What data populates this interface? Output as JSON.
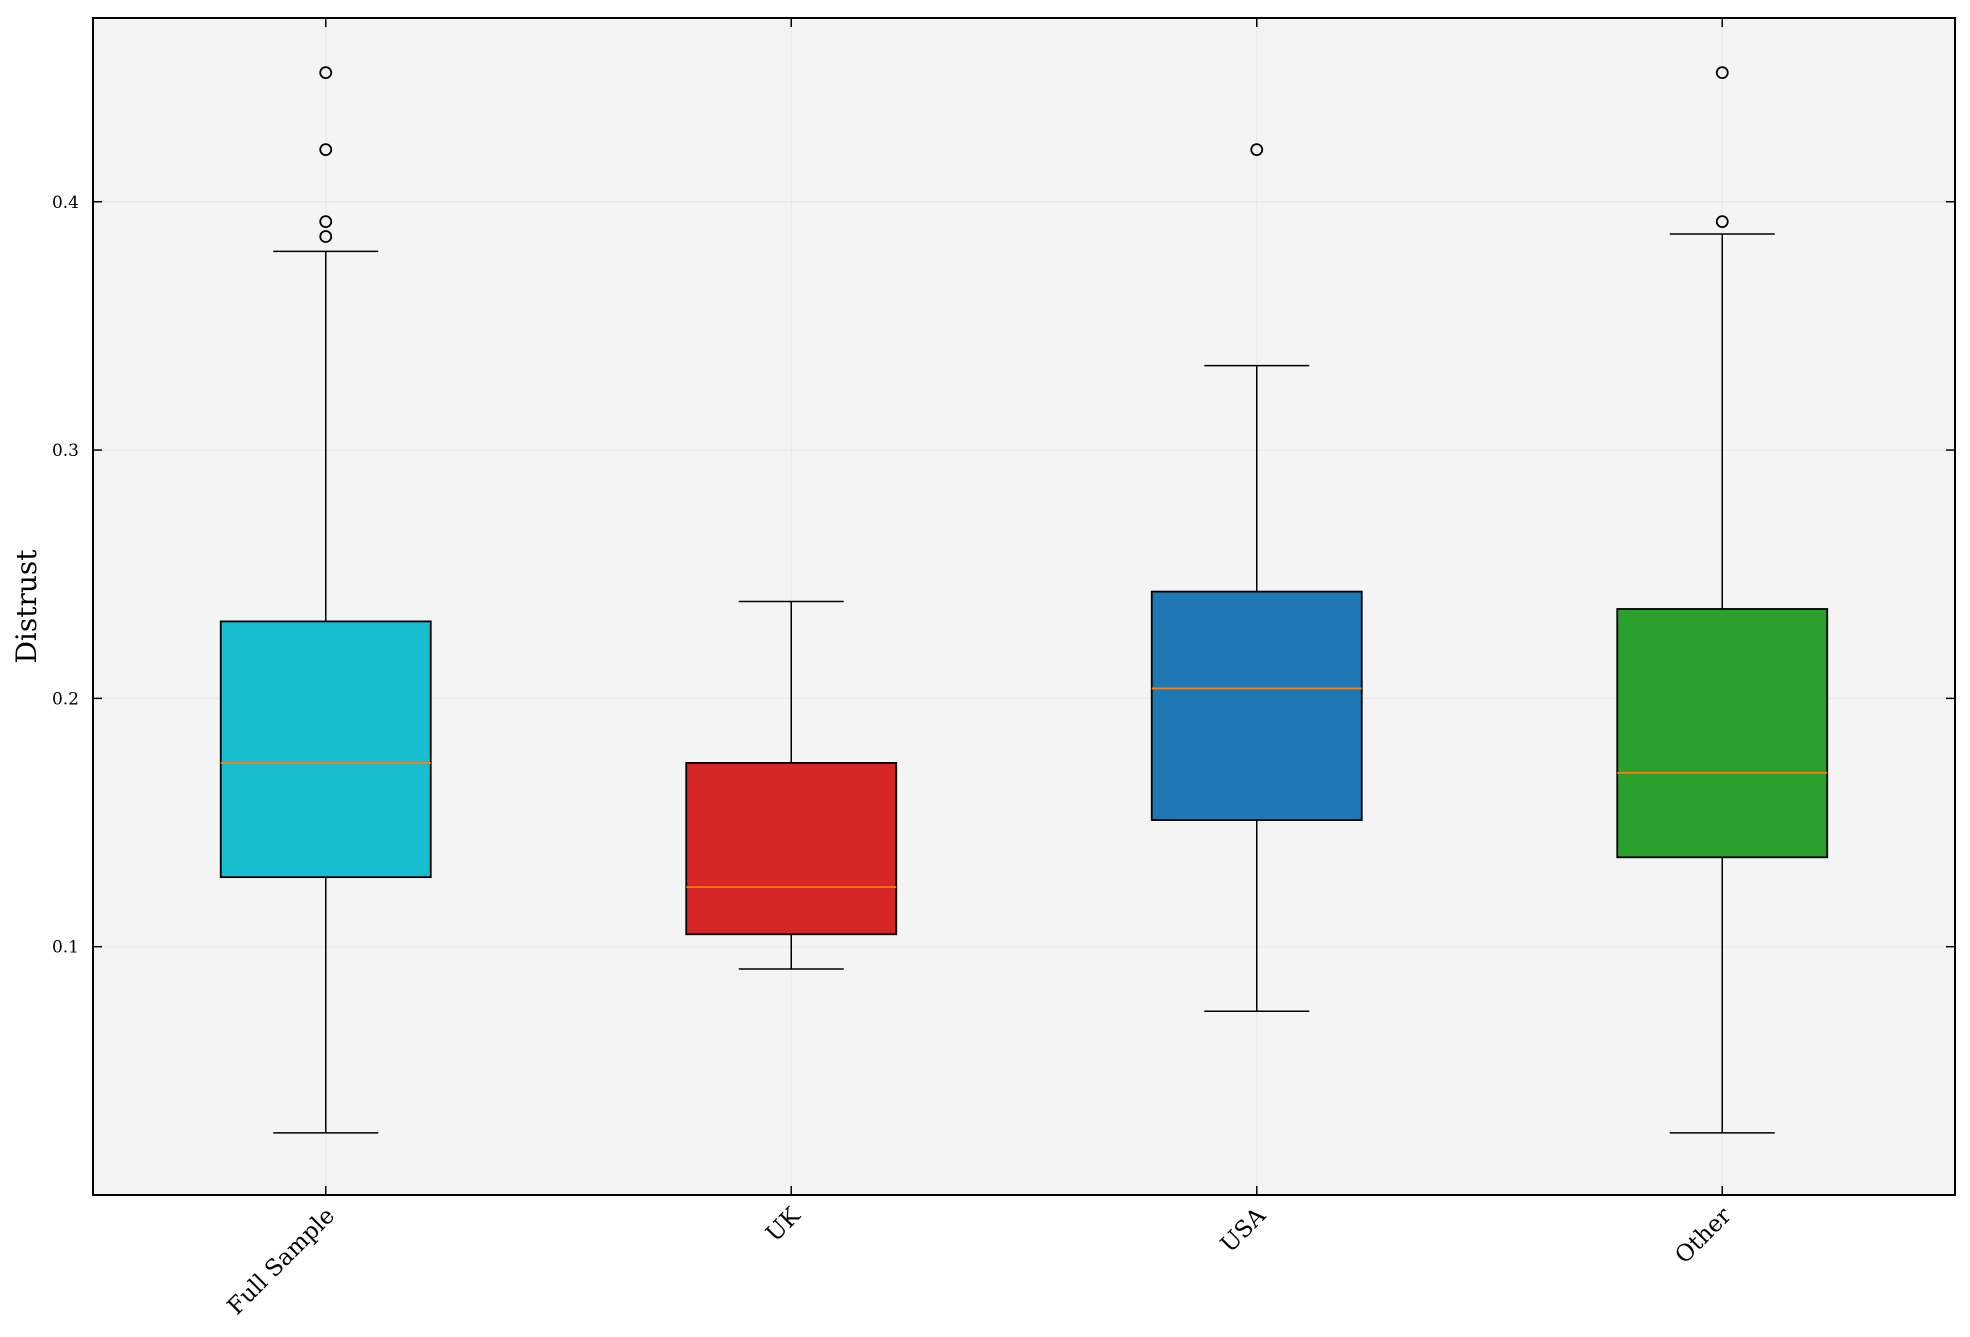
{
  "chart_data": {
    "type": "boxplot",
    "ylabel": "Distrust",
    "xlabel": "",
    "title": "",
    "ylim": [
      0.0,
      0.474
    ],
    "yticks": [
      0.1,
      0.2,
      0.3,
      0.4
    ],
    "ytick_labels": [
      "0.1",
      "0.2",
      "0.3",
      "0.4"
    ],
    "grid": true,
    "categories": [
      "Full Sample",
      "UK",
      "USA",
      "Other"
    ],
    "series": [
      {
        "category": "Full Sample",
        "color": "#17becf",
        "whisker_low": 0.025,
        "q1": 0.128,
        "median": 0.174,
        "q3": 0.231,
        "whisker_high": 0.38,
        "outliers": [
          0.452,
          0.421,
          0.392,
          0.386
        ]
      },
      {
        "category": "UK",
        "color": "#d62728",
        "whisker_low": 0.091,
        "q1": 0.105,
        "median": 0.124,
        "q3": 0.174,
        "whisker_high": 0.239,
        "outliers": []
      },
      {
        "category": "USA",
        "color": "#1f77b4",
        "whisker_low": 0.074,
        "q1": 0.151,
        "median": 0.204,
        "q3": 0.243,
        "whisker_high": 0.334,
        "outliers": [
          0.421
        ]
      },
      {
        "category": "Other",
        "color": "#2ca02c",
        "whisker_low": 0.025,
        "q1": 0.136,
        "median": 0.17,
        "q3": 0.236,
        "whisker_high": 0.387,
        "outliers": [
          0.452,
          0.392
        ]
      }
    ],
    "median_color": "#ff7f0e",
    "background_color": "#f4f4f4"
  }
}
